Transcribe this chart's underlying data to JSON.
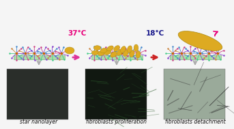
{
  "bg_color": "#f5f5f5",
  "label1": "star nanolayer",
  "label2": "fibroblasts proliferation",
  "label3": "fibroblasts detachment",
  "temp1": "37°C",
  "temp2": "18°C",
  "temp1_color": "#e8007a",
  "temp2_color": "#1a1a8c",
  "label_fontsize": 5.5,
  "temp_fontsize": 7.5,
  "panel1_bg": "#2a2e2a",
  "panel2_bg": "#111811",
  "panel3_bg": "#888888",
  "substrate_color": "#aaddaa",
  "substrate_edge": "#88aa88",
  "cell_face": "#ddaa22",
  "cell_edge": "#aa8811",
  "arm_colors": [
    "#8844cc",
    "#cc4488",
    "#4488cc",
    "#cc8844",
    "#44cc88"
  ],
  "center_color": "#cc6600",
  "arrow_h_color1": "#dd3399",
  "arrow_h_color2": "#cc2222",
  "arrow_down_color": "#aaaaaa"
}
